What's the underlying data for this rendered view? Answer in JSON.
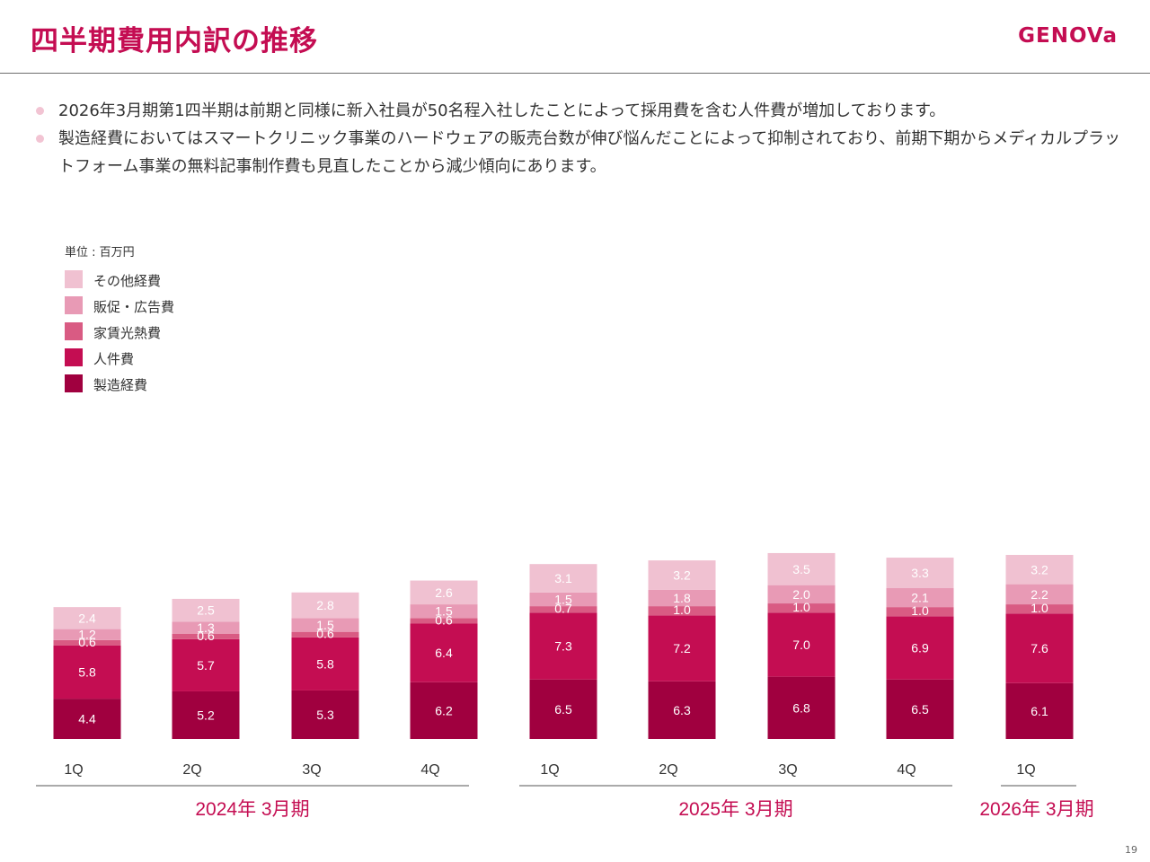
{
  "header": {
    "title": "四半期費用内訳の推移",
    "logo_text": "GENOVa"
  },
  "bullets": [
    "2026年3月期第1四半期は前期と同様に新入社員が50名程入社したことによって採用費を含む人件費が増加しております。",
    "製造経費においてはスマートクリニック事業のハードウェアの販売台数が伸び悩んだことによって抑制されており、前期下期からメディカルプラットフォーム事業の無料記事制作費も見直したことから減少傾向にあります。"
  ],
  "page_number": "19",
  "chart_data": {
    "type": "bar",
    "stacked": true,
    "unit_label": "単位 : 百万円",
    "categories": [
      "1Q",
      "2Q",
      "3Q",
      "4Q",
      "1Q",
      "2Q",
      "3Q",
      "4Q",
      "1Q"
    ],
    "groups": [
      {
        "label": "2024年 3月期",
        "categories": [
          0,
          1,
          2,
          3
        ]
      },
      {
        "label": "2025年 3月期",
        "categories": [
          4,
          5,
          6,
          7
        ]
      },
      {
        "label": "2026年 3月期",
        "categories": [
          8
        ]
      }
    ],
    "series": [
      {
        "name": "製造経費",
        "color": "#a0003f",
        "values": [
          4.4,
          5.2,
          5.3,
          6.2,
          6.5,
          6.3,
          6.8,
          6.5,
          6.1
        ]
      },
      {
        "name": "人件費",
        "color": "#c40d52",
        "values": [
          5.8,
          5.7,
          5.8,
          6.4,
          7.3,
          7.2,
          7.0,
          6.9,
          7.6
        ]
      },
      {
        "name": "家賃光熱費",
        "color": "#d95b83",
        "values": [
          0.6,
          0.6,
          0.6,
          0.6,
          0.7,
          1.0,
          1.0,
          1.0,
          1.0
        ]
      },
      {
        "name": "販促・広告費",
        "color": "#e89ab5",
        "values": [
          1.2,
          1.3,
          1.5,
          1.5,
          1.5,
          1.8,
          2.0,
          2.1,
          2.2
        ]
      },
      {
        "name": "その他経費",
        "color": "#f0c1d1",
        "values": [
          2.4,
          2.5,
          2.8,
          2.6,
          3.1,
          3.2,
          3.5,
          3.3,
          3.2
        ]
      }
    ],
    "legend_order": [
      "その他経費",
      "販促・広告費",
      "家賃光熱費",
      "人件費",
      "製造経費"
    ],
    "group_label_color": "#c40d52"
  }
}
